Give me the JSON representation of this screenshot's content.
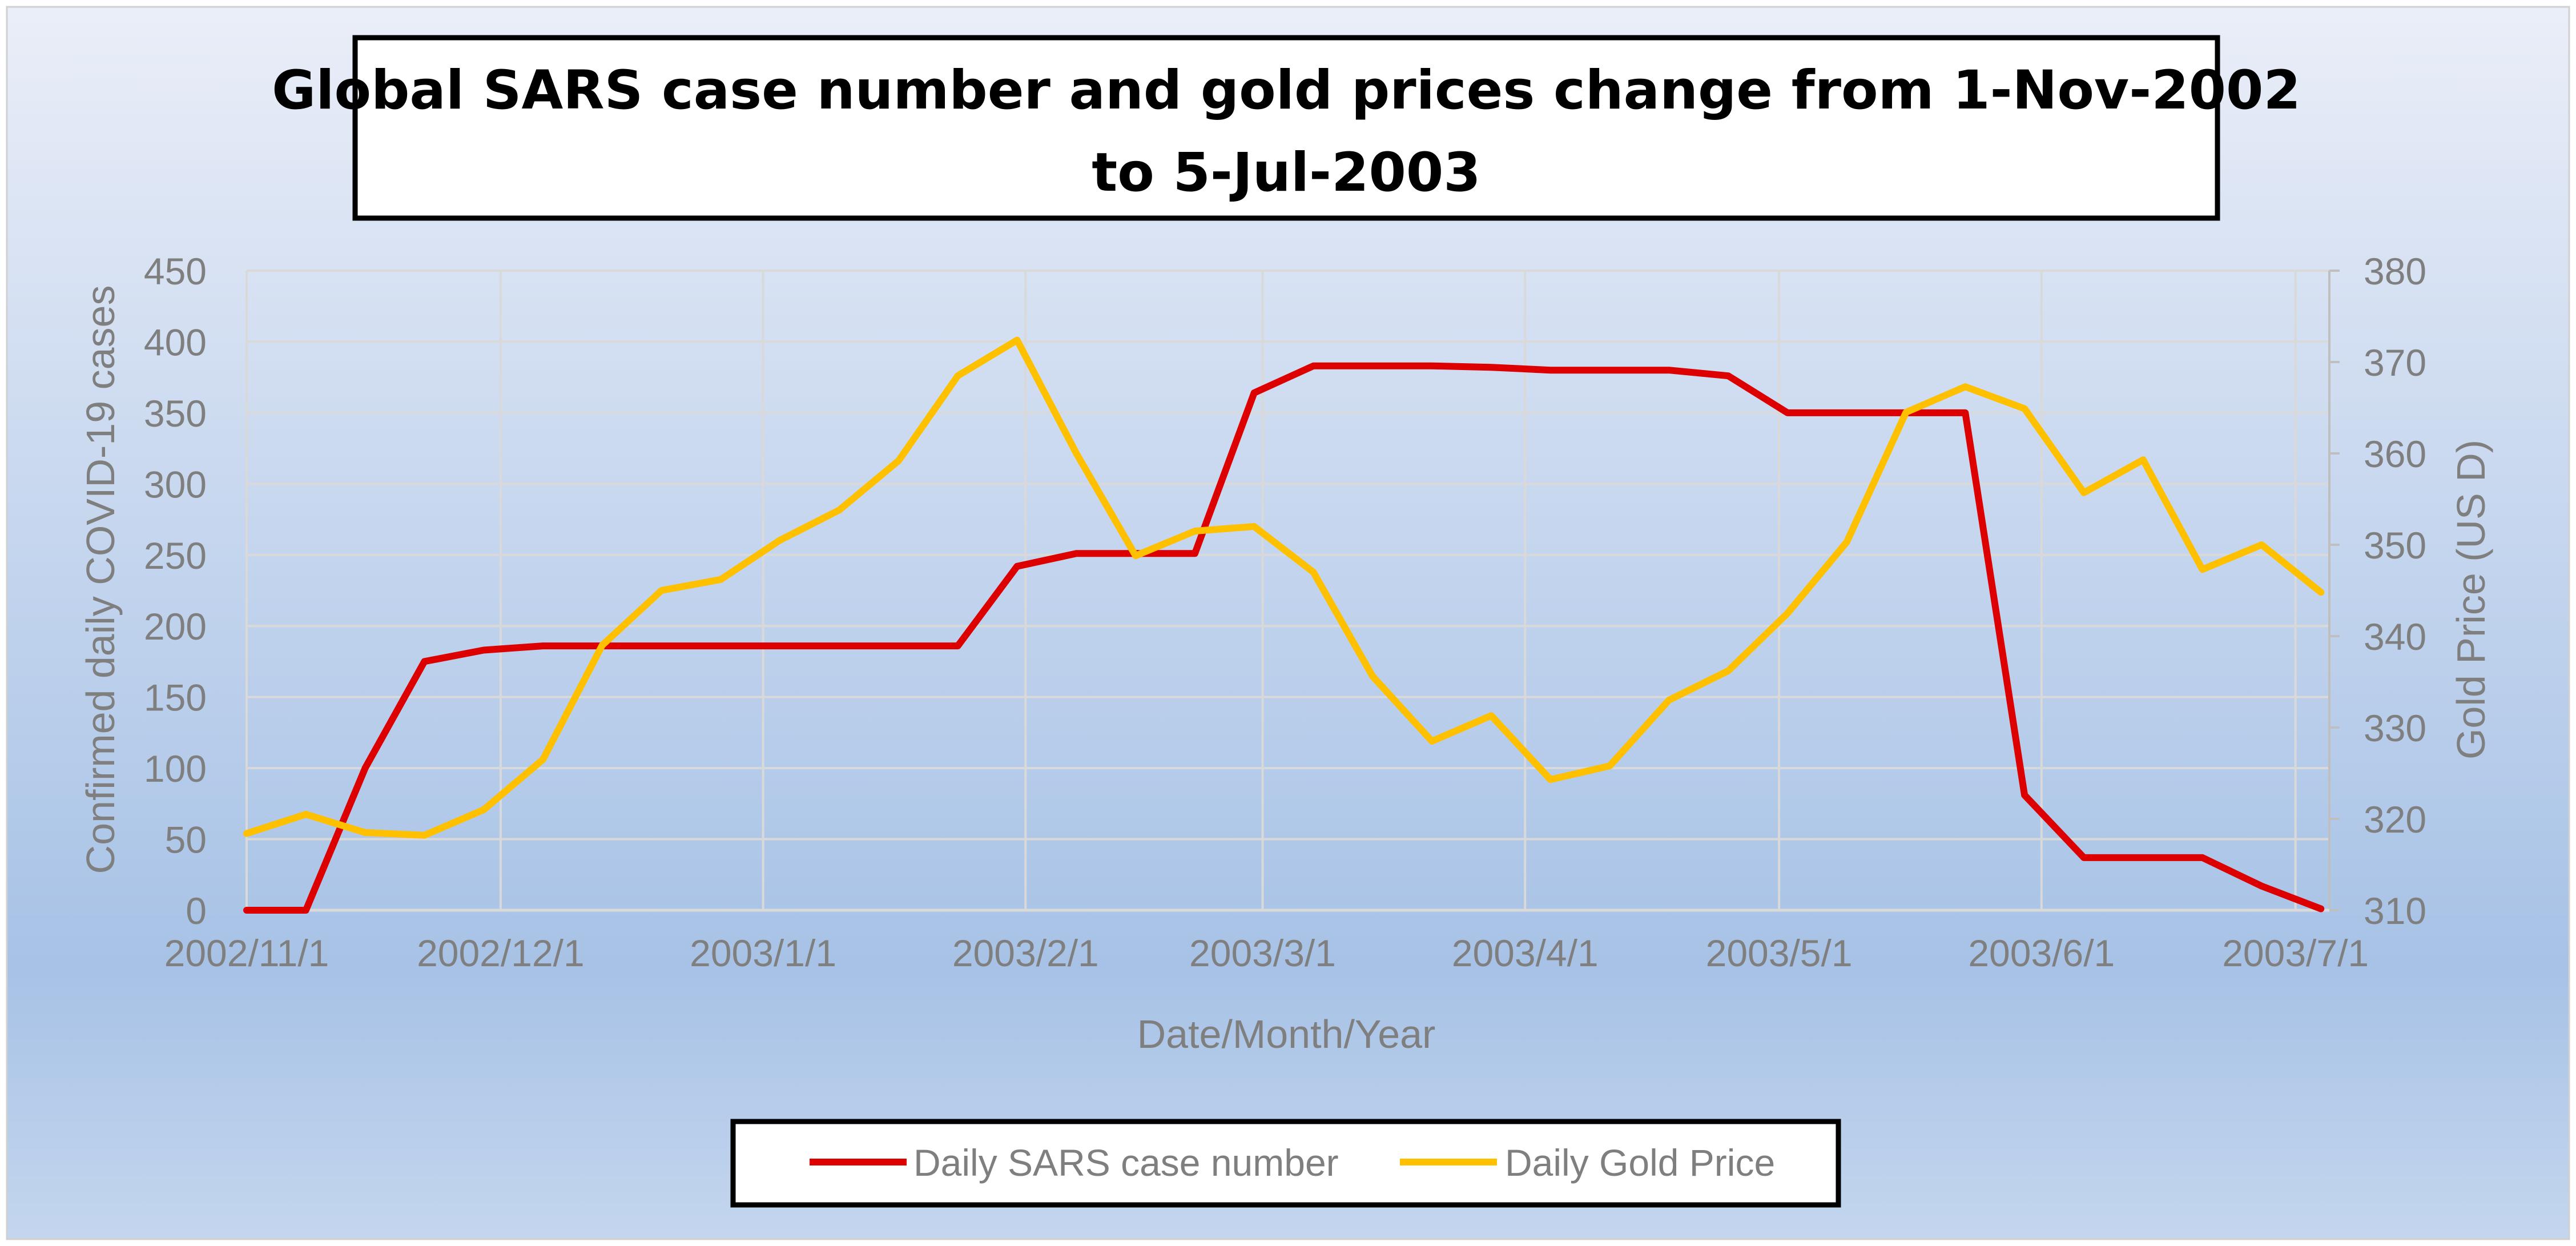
{
  "chart_data": {
    "type": "line",
    "title_lines": [
      "Global SARS case number and gold prices change from 1-Nov-2002",
      "to 5-Jul-2003"
    ],
    "xlabel": "Date/Month/Year",
    "ylabel_left": "Confirmed daily COVID-19 cases",
    "ylabel_right": "Gold Price (US D)",
    "x_range_days": [
      0,
      246
    ],
    "x_ticks": [
      {
        "label": "2002/11/1",
        "day": 0
      },
      {
        "label": "2002/12/1",
        "day": 30
      },
      {
        "label": "2003/1/1",
        "day": 61
      },
      {
        "label": "2003/2/1",
        "day": 92
      },
      {
        "label": "2003/3/1",
        "day": 120
      },
      {
        "label": "2003/4/1",
        "day": 151
      },
      {
        "label": "2003/5/1",
        "day": 181
      },
      {
        "label": "2003/6/1",
        "day": 212
      },
      {
        "label": "2003/7/1",
        "day": 242
      }
    ],
    "y_left": {
      "min": 0,
      "max": 450,
      "step": 50,
      "ticks": [
        "0",
        "50",
        "100",
        "150",
        "200",
        "250",
        "300",
        "350",
        "400",
        "450"
      ]
    },
    "y_right": {
      "min": 310,
      "max": 380,
      "step": 10,
      "ticks": [
        "310",
        "320",
        "330",
        "340",
        "350",
        "360",
        "370",
        "380"
      ]
    },
    "series": [
      {
        "name": "Daily SARS case number",
        "axis": "left",
        "color": "#dc0000",
        "points": [
          [
            0,
            0
          ],
          [
            7,
            0
          ],
          [
            14,
            100
          ],
          [
            21,
            175
          ],
          [
            28,
            183
          ],
          [
            35,
            186
          ],
          [
            42,
            186
          ],
          [
            49,
            186
          ],
          [
            56,
            186
          ],
          [
            63,
            186
          ],
          [
            70,
            186
          ],
          [
            77,
            186
          ],
          [
            84,
            186
          ],
          [
            91,
            242
          ],
          [
            98,
            251
          ],
          [
            105,
            251
          ],
          [
            112,
            251
          ],
          [
            119,
            364
          ],
          [
            126,
            383
          ],
          [
            133,
            383
          ],
          [
            140,
            383
          ],
          [
            147,
            382
          ],
          [
            154,
            380
          ],
          [
            161,
            380
          ],
          [
            168,
            380
          ],
          [
            175,
            376
          ],
          [
            182,
            350
          ],
          [
            189,
            350
          ],
          [
            196,
            350
          ],
          [
            203,
            350
          ],
          [
            210,
            81
          ],
          [
            217,
            37
          ],
          [
            224,
            37
          ],
          [
            231,
            37
          ],
          [
            238,
            17
          ],
          [
            245,
            1
          ]
        ]
      },
      {
        "name": "Daily Gold Price",
        "axis": "right",
        "color": "#ffc000",
        "points": [
          [
            0,
            318.4
          ],
          [
            7,
            320.5
          ],
          [
            14,
            318.5
          ],
          [
            21,
            318.2
          ],
          [
            28,
            321
          ],
          [
            35,
            326.5
          ],
          [
            42,
            339
          ],
          [
            49,
            345
          ],
          [
            56,
            346.2
          ],
          [
            63,
            350.5
          ],
          [
            70,
            353.8
          ],
          [
            77,
            359.2
          ],
          [
            84,
            368.5
          ],
          [
            91,
            372.4
          ],
          [
            98,
            360
          ],
          [
            105,
            348.8
          ],
          [
            112,
            351.5
          ],
          [
            119,
            352
          ],
          [
            126,
            347
          ],
          [
            133,
            335.6
          ],
          [
            140,
            328.5
          ],
          [
            147,
            331.3
          ],
          [
            154,
            324.3
          ],
          [
            161,
            325.8
          ],
          [
            168,
            333
          ],
          [
            175,
            336.2
          ],
          [
            182,
            342.5
          ],
          [
            189,
            350.3
          ],
          [
            196,
            364.5
          ],
          [
            203,
            367.3
          ],
          [
            210,
            364.9
          ],
          [
            217,
            355.7
          ],
          [
            224,
            359.3
          ],
          [
            231,
            347.3
          ],
          [
            238,
            350
          ],
          [
            245,
            344.8
          ]
        ]
      }
    ],
    "legend": {
      "position": "bottom",
      "items": [
        "Daily SARS case number",
        "Daily Gold Price"
      ]
    },
    "grid": true,
    "background": {
      "top": "#eaeef8",
      "middle": "#a7c2e6",
      "bottom": "#c4d6ee"
    }
  }
}
